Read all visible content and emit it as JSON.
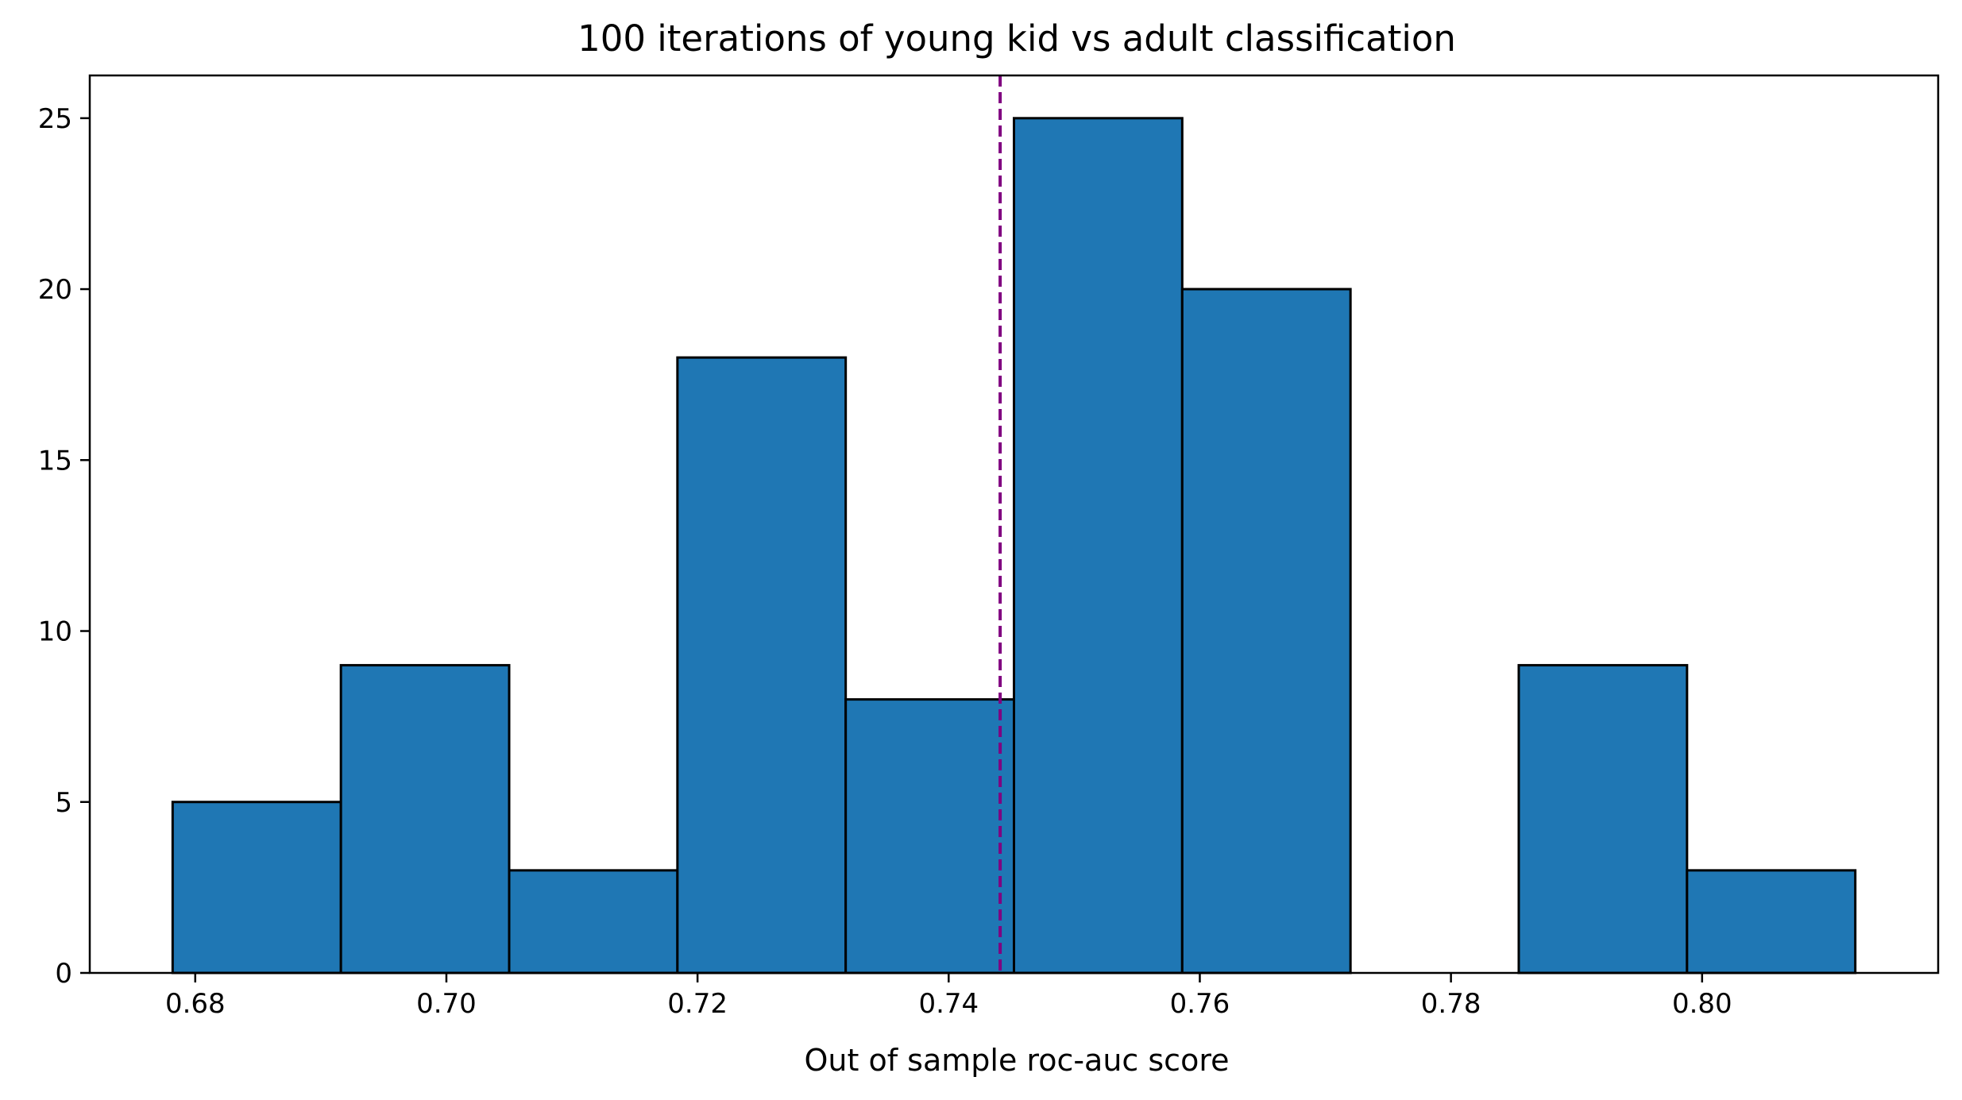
{
  "chart_data": {
    "type": "bar",
    "title": "100 iterations of young kid vs adult classification",
    "xlabel": "Out of sample roc-auc score",
    "ylabel": "",
    "bins": [
      {
        "x0": 0.6782,
        "x1": 0.6916,
        "count": 5
      },
      {
        "x0": 0.6916,
        "x1": 0.705,
        "count": 9
      },
      {
        "x0": 0.705,
        "x1": 0.7184,
        "count": 3
      },
      {
        "x0": 0.7184,
        "x1": 0.7318,
        "count": 18
      },
      {
        "x0": 0.7318,
        "x1": 0.7452,
        "count": 8
      },
      {
        "x0": 0.7452,
        "x1": 0.7586,
        "count": 25
      },
      {
        "x0": 0.7586,
        "x1": 0.772,
        "count": 20
      },
      {
        "x0": 0.772,
        "x1": 0.7854,
        "count": 0
      },
      {
        "x0": 0.7854,
        "x1": 0.7988,
        "count": 9
      },
      {
        "x0": 0.7988,
        "x1": 0.8122,
        "count": 3
      }
    ],
    "mean_line": {
      "x": 0.7441,
      "color": "#800080",
      "style": "dashed"
    },
    "xlim": [
      0.6716,
      0.8188
    ],
    "ylim": [
      0,
      26.25
    ],
    "xticks": [
      "0.68",
      "0.70",
      "0.72",
      "0.74",
      "0.76",
      "0.78",
      "0.80"
    ],
    "yticks": [
      "0",
      "5",
      "10",
      "15",
      "20",
      "25"
    ],
    "bar_color": "#1f77b4",
    "edge_color": "#000000",
    "grid": false,
    "legend": "none"
  }
}
